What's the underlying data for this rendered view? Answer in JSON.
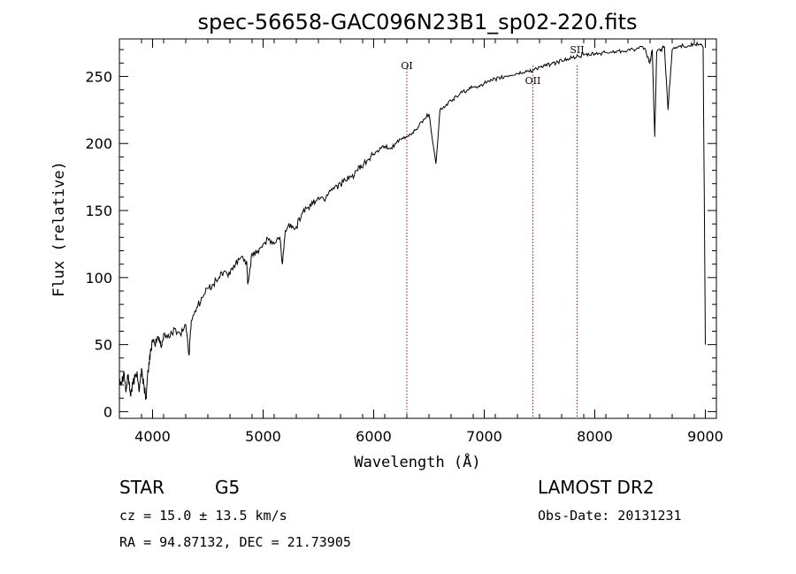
{
  "chart_data": {
    "type": "line",
    "title": "spec-56658-GAC096N23B1_sp02-220.fits",
    "xlabel": "Wavelength (Å)",
    "ylabel": "Flux (relative)",
    "xlim": [
      3700,
      9100
    ],
    "ylim": [
      -5,
      278
    ],
    "x_ticks": [
      4000,
      5000,
      6000,
      7000,
      8000,
      9000
    ],
    "y_ticks": [
      0,
      50,
      100,
      150,
      200,
      250
    ],
    "grid": false,
    "series": [
      {
        "x": [
          3700,
          3720,
          3740,
          3760,
          3780,
          3800,
          3820,
          3840,
          3860,
          3880,
          3900,
          3920,
          3940,
          3960,
          3980,
          4000,
          4020,
          4050,
          4080,
          4100,
          4150,
          4200,
          4250,
          4300,
          4330,
          4350,
          4400,
          4450,
          4500,
          4550,
          4600,
          4650,
          4700,
          4750,
          4800,
          4850,
          4861,
          4900,
          4950,
          5000,
          5050,
          5100,
          5150,
          5175,
          5200,
          5250,
          5300,
          5350,
          5400,
          5450,
          5500,
          5550,
          5600,
          5650,
          5700,
          5750,
          5800,
          5850,
          5890,
          5950,
          6000,
          6050,
          6100,
          6150,
          6200,
          6250,
          6300,
          6350,
          6400,
          6450,
          6500,
          6563,
          6600,
          6650,
          6700,
          6750,
          6800,
          6850,
          6900,
          6950,
          7000,
          7050,
          7100,
          7150,
          7200,
          7250,
          7300,
          7350,
          7400,
          7450,
          7500,
          7550,
          7600,
          7650,
          7700,
          7750,
          7800,
          7850,
          7900,
          7950,
          8000,
          8050,
          8100,
          8150,
          8200,
          8250,
          8300,
          8350,
          8400,
          8450,
          8498,
          8520,
          8542,
          8560,
          8600,
          8630,
          8662,
          8700,
          8750,
          8800,
          8850,
          8900,
          8950,
          8980,
          9000
        ],
        "y": [
          25,
          22,
          30,
          15,
          28,
          12,
          20,
          25,
          30,
          15,
          32,
          20,
          10,
          30,
          45,
          52,
          50,
          56,
          48,
          58,
          55,
          62,
          58,
          65,
          42,
          68,
          78,
          85,
          92,
          95,
          100,
          105,
          102,
          110,
          115,
          112,
          95,
          118,
          120,
          125,
          128,
          125,
          130,
          110,
          135,
          140,
          138,
          148,
          152,
          155,
          160,
          158,
          165,
          168,
          170,
          172,
          175,
          180,
          182,
          188,
          192,
          195,
          198,
          196,
          200,
          203,
          205,
          208,
          212,
          218,
          222,
          185,
          225,
          228,
          232,
          235,
          238,
          240,
          242,
          243,
          245,
          246,
          248,
          249,
          250,
          251,
          252,
          253,
          254,
          255,
          257,
          258,
          259,
          260,
          262,
          263,
          264,
          265,
          266,
          266,
          267,
          267,
          268,
          268,
          269,
          269,
          270,
          270,
          271,
          271,
          260,
          270,
          205,
          268,
          270,
          272,
          225,
          270,
          272,
          273,
          273,
          274,
          274,
          272,
          50
        ]
      }
    ],
    "line_markers": [
      {
        "label": "OI",
        "x": 6300
      },
      {
        "label": "OII",
        "x": 7440
      },
      {
        "label": "SII",
        "x": 7840
      }
    ]
  },
  "info": {
    "object_type": "STAR",
    "subclass": "G5",
    "survey": "LAMOST DR2",
    "cz": "cz = 15.0 ± 13.5 km/s",
    "obs_date": "Obs-Date: 20131231",
    "coords": "RA =  94.87132, DEC =  21.73905"
  }
}
